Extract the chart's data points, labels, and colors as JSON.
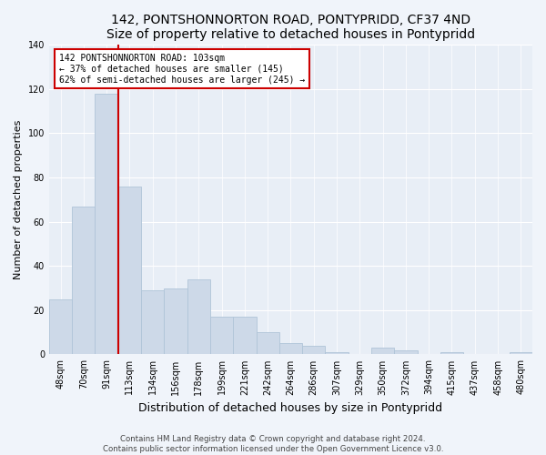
{
  "title": "142, PONTSHONNORTON ROAD, PONTYPRIDD, CF37 4ND",
  "subtitle": "Size of property relative to detached houses in Pontypridd",
  "xlabel": "Distribution of detached houses by size in Pontypridd",
  "ylabel": "Number of detached properties",
  "bar_color": "#cdd9e8",
  "bar_edge_color": "#b0c4d8",
  "categories": [
    "48sqm",
    "70sqm",
    "91sqm",
    "113sqm",
    "134sqm",
    "156sqm",
    "178sqm",
    "199sqm",
    "221sqm",
    "242sqm",
    "264sqm",
    "286sqm",
    "307sqm",
    "329sqm",
    "350sqm",
    "372sqm",
    "394sqm",
    "415sqm",
    "437sqm",
    "458sqm",
    "480sqm"
  ],
  "values": [
    25,
    67,
    118,
    76,
    29,
    30,
    34,
    17,
    17,
    10,
    5,
    4,
    1,
    0,
    3,
    2,
    0,
    1,
    0,
    0,
    1
  ],
  "ylim": [
    0,
    140
  ],
  "yticks": [
    0,
    20,
    40,
    60,
    80,
    100,
    120,
    140
  ],
  "property_line_x": 2.5,
  "property_line_label": "142 PONTSHONNORTON ROAD: 103sqm",
  "annotation_line1": "← 37% of detached houses are smaller (145)",
  "annotation_line2": "62% of semi-detached houses are larger (245) →",
  "annotation_box_color": "#ffffff",
  "annotation_border_color": "#cc0000",
  "vline_color": "#cc0000",
  "plot_bg_color": "#e8eef6",
  "fig_bg_color": "#f0f4fa",
  "footer_text": "Contains HM Land Registry data © Crown copyright and database right 2024.\nContains public sector information licensed under the Open Government Licence v3.0.",
  "title_fontsize": 10,
  "xlabel_fontsize": 9,
  "ylabel_fontsize": 8,
  "tick_fontsize": 7,
  "annotation_fontsize": 7
}
